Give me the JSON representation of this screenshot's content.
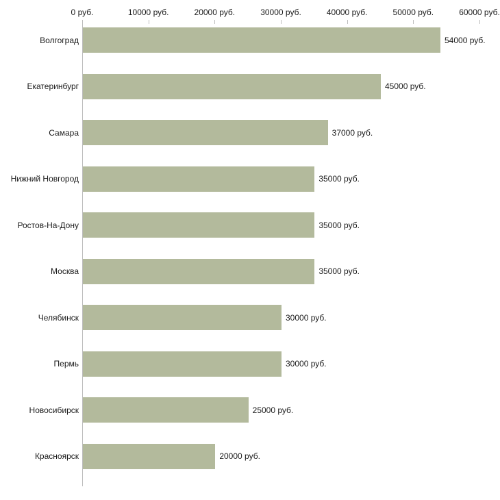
{
  "chart_data": {
    "type": "bar",
    "orientation": "horizontal",
    "title": "",
    "xlabel": "",
    "ylabel": "",
    "categories": [
      "Волгоград",
      "Екатеринбург",
      "Самара",
      "Нижний Новгород",
      "Ростов-На-Дону",
      "Москва",
      "Челябинск",
      "Пермь",
      "Новосибирск",
      "Красноярск"
    ],
    "values": [
      54000,
      45000,
      37000,
      35000,
      35000,
      35000,
      30000,
      30000,
      25000,
      20000
    ],
    "value_labels": [
      "54000 руб.",
      "45000 руб.",
      "37000 руб.",
      "35000 руб.",
      "35000 руб.",
      "35000 руб.",
      "30000 руб.",
      "30000 руб.",
      "25000 руб.",
      "20000 руб."
    ],
    "x_ticks": [
      0,
      10000,
      20000,
      30000,
      40000,
      50000,
      60000
    ],
    "x_tick_labels": [
      "0 руб.",
      "10000 руб.",
      "20000 руб.",
      "30000 руб.",
      "40000 руб.",
      "50000 руб.",
      "60000 руб."
    ],
    "xlim": [
      0,
      60000
    ],
    "grid": false,
    "legend": false,
    "bar_color": "#b3ba9c",
    "axis_color": "#bdbdbd",
    "text_color": "#1a1a1a"
  }
}
